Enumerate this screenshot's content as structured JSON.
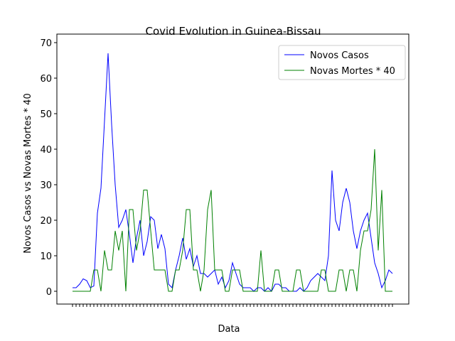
{
  "chart_data": {
    "type": "line",
    "title": "Covid Evolution in Guinea-Bissau",
    "x_label": "Data",
    "y_label": "Novos Casos vs Novas Mortes * 40",
    "categories": [
      null,
      null,
      null,
      null,
      null,
      null,
      null,
      null,
      null,
      null,
      null,
      null,
      null,
      null,
      null,
      null,
      null,
      null,
      null,
      null,
      null,
      null,
      null,
      null,
      null,
      null,
      null,
      null,
      null,
      null,
      null,
      null,
      null,
      null,
      null,
      null,
      null,
      null,
      null,
      null,
      null,
      null,
      null,
      null,
      null,
      null,
      null,
      null,
      null,
      null,
      null,
      null,
      null,
      null,
      null,
      null,
      null,
      null,
      null,
      null,
      null,
      null,
      null,
      null,
      null,
      null,
      null,
      null,
      null,
      null,
      null,
      null,
      null,
      null,
      null,
      null,
      null,
      null,
      null,
      null,
      null,
      null,
      null,
      null,
      null,
      null,
      null,
      null,
      null,
      null,
      null
    ],
    "series": [
      {
        "name": "Novos Casos",
        "color": "#0000ff",
        "values": [
          1,
          1,
          2,
          3.5,
          3,
          1,
          1.5,
          22,
          29,
          48,
          67,
          47,
          30,
          18,
          20,
          23,
          16,
          8,
          15,
          20,
          10,
          14,
          21,
          20,
          12,
          16,
          12,
          2,
          1,
          6,
          10,
          15,
          9,
          12,
          7,
          10,
          5,
          5,
          4,
          5,
          6,
          2,
          4,
          1,
          3,
          8,
          5,
          2,
          1,
          1,
          1,
          0,
          1,
          1,
          0,
          1,
          0,
          2,
          2,
          1,
          1,
          0,
          0,
          0,
          1,
          0,
          1,
          3,
          4,
          5,
          4,
          3,
          10,
          34,
          20,
          17,
          25,
          29,
          25,
          17,
          12,
          17,
          20,
          22,
          15,
          8,
          5,
          1,
          3,
          6,
          5
        ]
      },
      {
        "name": "Novas Mortes * 40",
        "color": "#008000",
        "values": [
          0,
          0,
          0,
          0,
          0,
          0,
          6,
          6,
          0,
          11.5,
          6,
          6,
          17,
          11.5,
          17,
          0,
          23,
          23,
          11.5,
          17,
          28.5,
          28.5,
          17,
          6,
          6,
          6,
          6,
          0,
          0,
          6,
          6,
          11.5,
          23,
          23,
          6,
          6,
          0,
          6,
          23,
          28.5,
          6,
          6,
          6,
          0,
          0,
          6,
          6,
          6,
          0,
          0,
          0,
          0,
          0,
          11.5,
          0,
          0,
          0,
          6,
          6,
          0,
          0,
          0,
          0,
          6,
          6,
          0,
          0,
          0,
          0,
          0,
          6,
          6,
          0,
          0,
          0,
          6,
          6,
          0,
          6,
          6,
          0,
          11.5,
          17,
          17,
          23,
          40,
          11.5,
          28.5,
          0,
          0,
          0
        ]
      }
    ],
    "ylim": [
      -3.6,
      72.4
    ],
    "yticks": [
      0,
      10,
      20,
      30,
      40,
      50,
      60,
      70
    ],
    "legend": "upper right",
    "grid": false
  }
}
